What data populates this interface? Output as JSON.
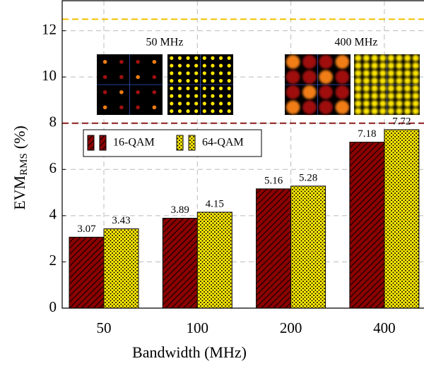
{
  "chart_data": {
    "type": "bar",
    "categories": [
      "50",
      "100",
      "200",
      "400"
    ],
    "series": [
      {
        "name": "16-QAM",
        "color": "#8b0000",
        "values": [
          3.07,
          3.89,
          5.16,
          7.18
        ]
      },
      {
        "name": "64-QAM",
        "color": "#ffea00",
        "values": [
          3.43,
          4.15,
          5.28,
          7.72
        ]
      }
    ],
    "ylim": [
      0,
      13.3
    ],
    "yticks": [
      0,
      2,
      4,
      6,
      8,
      10,
      12
    ],
    "grid": true,
    "xlabel": "Bandwidth (MHz)",
    "ylabel": [
      "EVM",
      "RMS",
      "(%)"
    ],
    "reference_lines": [
      {
        "value": 12.5,
        "color": "#f2c200"
      },
      {
        "value": 8,
        "color": "#8b1a1a"
      }
    ],
    "insets": [
      "50 MHz",
      "400 MHz"
    ],
    "legend": "upper left"
  }
}
